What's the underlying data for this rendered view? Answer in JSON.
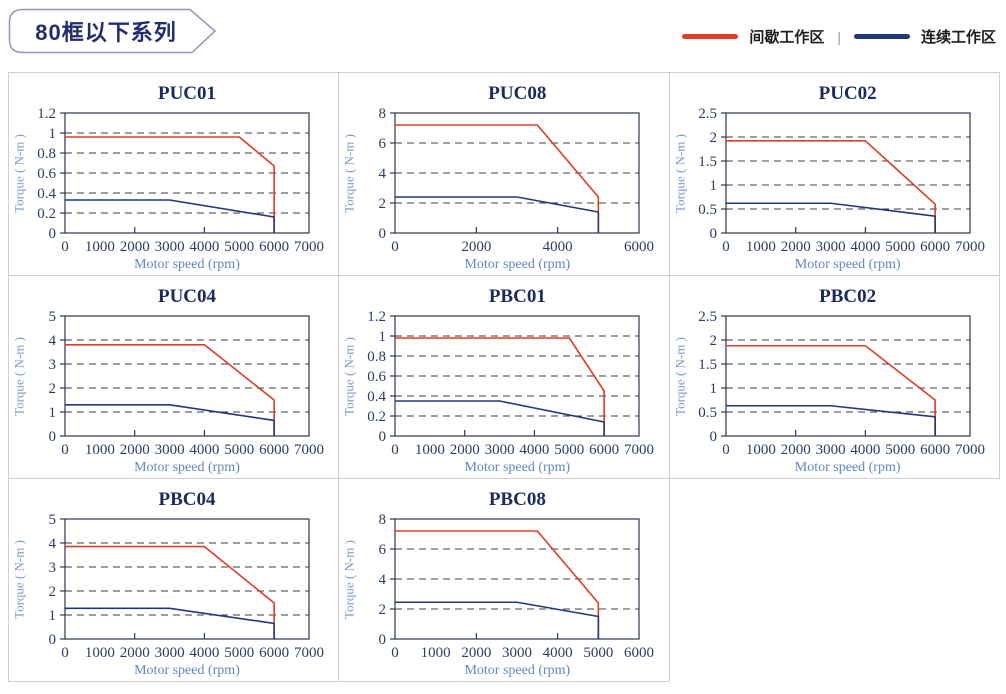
{
  "header": {
    "title": "80框以下系列"
  },
  "legend": {
    "items": [
      {
        "label": "间歇工作区",
        "color": "#dd3e25"
      },
      {
        "label": "连续工作区",
        "color": "#21397a"
      }
    ],
    "separator": "|"
  },
  "colors": {
    "accent_red": "#dd3e25",
    "accent_navy": "#21397a",
    "axis_label_blue": "#5f87c5",
    "tick_text": "#2e3c64",
    "frame": "#2c3550",
    "cell_border": "#ccd0da",
    "title_text": "#1b2a5e"
  },
  "chart_data": [
    {
      "type": "line",
      "title": "PUC01",
      "xlabel": "Motor speed (rpm)",
      "ylabel": "Torque ( N-m )",
      "xlim": [
        0,
        7000
      ],
      "ylim": [
        0,
        1.2
      ],
      "x_tick_labels": [
        0,
        1000,
        2000,
        3000,
        4000,
        5000,
        6000,
        7000
      ],
      "x_tick_marks": [
        2000,
        4000,
        6000
      ],
      "y_ticks": [
        0,
        0.2,
        0.4,
        0.6,
        0.8,
        1,
        1.2
      ],
      "grid": "horizontal-dashed",
      "legend_position": "none",
      "series": [
        {
          "name": "间歇工作区",
          "color": "#dd3e25",
          "points": [
            [
              0,
              0.96
            ],
            [
              5000,
              0.96
            ],
            [
              6000,
              0.67
            ],
            [
              6000,
              0
            ]
          ]
        },
        {
          "name": "连续工作区",
          "color": "#21397a",
          "points": [
            [
              0,
              0.33
            ],
            [
              3000,
              0.33
            ],
            [
              6000,
              0.16
            ],
            [
              6000,
              0
            ]
          ]
        }
      ]
    },
    {
      "type": "line",
      "title": "PUC08",
      "xlabel": "Motor speed (rpm)",
      "ylabel": "Torque ( N-m )",
      "xlim": [
        0,
        6000
      ],
      "ylim": [
        0,
        8
      ],
      "x_tick_labels": [
        0,
        2000,
        4000,
        6000
      ],
      "x_tick_marks": [
        2000,
        4000
      ],
      "y_ticks": [
        0,
        2,
        4,
        6,
        8
      ],
      "grid": "horizontal-dashed",
      "legend_position": "none",
      "series": [
        {
          "name": "间歇工作区",
          "color": "#dd3e25",
          "points": [
            [
              0,
              7.2
            ],
            [
              3500,
              7.2
            ],
            [
              5000,
              2.4
            ],
            [
              5000,
              0
            ]
          ]
        },
        {
          "name": "连续工作区",
          "color": "#21397a",
          "points": [
            [
              0,
              2.4
            ],
            [
              3000,
              2.4
            ],
            [
              5000,
              1.4
            ],
            [
              5000,
              0
            ]
          ]
        }
      ]
    },
    {
      "type": "line",
      "title": "PUC02",
      "xlabel": "Motor speed (rpm)",
      "ylabel": "Torque ( N-m )",
      "xlim": [
        0,
        7000
      ],
      "ylim": [
        0,
        2.5
      ],
      "x_tick_labels": [
        0,
        1000,
        2000,
        3000,
        4000,
        5000,
        6000,
        7000
      ],
      "x_tick_marks": [
        2000,
        4000,
        6000
      ],
      "y_ticks": [
        0,
        0.5,
        1,
        1.5,
        2,
        2.5
      ],
      "grid": "horizontal-dashed",
      "legend_position": "none",
      "series": [
        {
          "name": "间歇工作区",
          "color": "#dd3e25",
          "points": [
            [
              0,
              1.92
            ],
            [
              4000,
              1.92
            ],
            [
              6000,
              0.6
            ],
            [
              6000,
              0
            ]
          ]
        },
        {
          "name": "连续工作区",
          "color": "#21397a",
          "points": [
            [
              0,
              0.62
            ],
            [
              3000,
              0.62
            ],
            [
              6000,
              0.35
            ],
            [
              6000,
              0
            ]
          ]
        }
      ]
    },
    {
      "type": "line",
      "title": "PUC04",
      "xlabel": "Motor speed (rpm)",
      "ylabel": "Torque ( N-m )",
      "xlim": [
        0,
        7000
      ],
      "ylim": [
        0,
        5
      ],
      "x_tick_labels": [
        0,
        1000,
        2000,
        3000,
        4000,
        5000,
        6000,
        7000
      ],
      "x_tick_marks": [
        2000,
        4000,
        6000
      ],
      "y_ticks": [
        0,
        1,
        2,
        3,
        4,
        5
      ],
      "grid": "horizontal-dashed",
      "legend_position": "none",
      "series": [
        {
          "name": "间歇工作区",
          "color": "#dd3e25",
          "points": [
            [
              0,
              3.8
            ],
            [
              4000,
              3.8
            ],
            [
              6000,
              1.5
            ],
            [
              6000,
              0
            ]
          ]
        },
        {
          "name": "连续工作区",
          "color": "#21397a",
          "points": [
            [
              0,
              1.3
            ],
            [
              3000,
              1.3
            ],
            [
              6000,
              0.65
            ],
            [
              6000,
              0
            ]
          ]
        }
      ]
    },
    {
      "type": "line",
      "title": "PBC01",
      "xlabel": "Motor speed (rpm)",
      "ylabel": "Torque ( N-m )",
      "xlim": [
        0,
        7000
      ],
      "ylim": [
        0,
        1.2
      ],
      "x_tick_labels": [
        0,
        1000,
        2000,
        3000,
        4000,
        5000,
        6000,
        7000
      ],
      "x_tick_marks": [
        2000,
        4000,
        6000
      ],
      "y_ticks": [
        0,
        0.2,
        0.4,
        0.6,
        0.8,
        1,
        1.2
      ],
      "grid": "horizontal-dashed",
      "legend_position": "none",
      "series": [
        {
          "name": "间歇工作区",
          "color": "#dd3e25",
          "points": [
            [
              0,
              0.98
            ],
            [
              5000,
              0.98
            ],
            [
              6000,
              0.45
            ],
            [
              6000,
              0
            ]
          ]
        },
        {
          "name": "连续工作区",
          "color": "#21397a",
          "points": [
            [
              0,
              0.35
            ],
            [
              3000,
              0.35
            ],
            [
              6000,
              0.14
            ],
            [
              6000,
              0
            ]
          ]
        }
      ]
    },
    {
      "type": "line",
      "title": "PBC02",
      "xlabel": "Motor speed (rpm)",
      "ylabel": "Torque ( N-m )",
      "xlim": [
        0,
        7000
      ],
      "ylim": [
        0,
        2.5
      ],
      "x_tick_labels": [
        0,
        1000,
        2000,
        3000,
        4000,
        5000,
        6000,
        7000
      ],
      "x_tick_marks": [
        2000,
        4000,
        6000
      ],
      "y_ticks": [
        0,
        0.5,
        1,
        1.5,
        2,
        2.5
      ],
      "grid": "horizontal-dashed",
      "legend_position": "none",
      "series": [
        {
          "name": "间歇工作区",
          "color": "#dd3e25",
          "points": [
            [
              0,
              1.88
            ],
            [
              4000,
              1.88
            ],
            [
              6000,
              0.75
            ],
            [
              6000,
              0
            ]
          ]
        },
        {
          "name": "连续工作区",
          "color": "#21397a",
          "points": [
            [
              0,
              0.63
            ],
            [
              3000,
              0.63
            ],
            [
              6000,
              0.4
            ],
            [
              6000,
              0
            ]
          ]
        }
      ]
    },
    {
      "type": "line",
      "title": "PBC04",
      "xlabel": "Motor speed (rpm)",
      "ylabel": "Torque ( N-m )",
      "xlim": [
        0,
        7000
      ],
      "ylim": [
        0,
        5
      ],
      "x_tick_labels": [
        0,
        1000,
        2000,
        3000,
        4000,
        5000,
        6000,
        7000
      ],
      "x_tick_marks": [
        2000,
        4000,
        6000
      ],
      "y_ticks": [
        0,
        1,
        2,
        3,
        4,
        5
      ],
      "grid": "horizontal-dashed",
      "legend_position": "none",
      "series": [
        {
          "name": "间歇工作区",
          "color": "#dd3e25",
          "points": [
            [
              0,
              3.85
            ],
            [
              4000,
              3.85
            ],
            [
              6000,
              1.5
            ],
            [
              6000,
              0
            ]
          ]
        },
        {
          "name": "连续工作区",
          "color": "#21397a",
          "points": [
            [
              0,
              1.28
            ],
            [
              3000,
              1.28
            ],
            [
              6000,
              0.65
            ],
            [
              6000,
              0
            ]
          ]
        }
      ]
    },
    {
      "type": "line",
      "title": "PBC08",
      "xlabel": "Motor speed (rpm)",
      "ylabel": "Torque ( N-m )",
      "xlim": [
        0,
        6000
      ],
      "ylim": [
        0,
        8
      ],
      "x_tick_labels": [
        0,
        1000,
        2000,
        3000,
        4000,
        5000,
        6000
      ],
      "x_tick_marks": [
        2000,
        4000
      ],
      "y_ticks": [
        0,
        2,
        4,
        6,
        8
      ],
      "grid": "horizontal-dashed",
      "legend_position": "none",
      "series": [
        {
          "name": "间歇工作区",
          "color": "#dd3e25",
          "points": [
            [
              0,
              7.2
            ],
            [
              3500,
              7.2
            ],
            [
              5000,
              2.4
            ],
            [
              5000,
              0
            ]
          ]
        },
        {
          "name": "连续工作区",
          "color": "#21397a",
          "points": [
            [
              0,
              2.45
            ],
            [
              3000,
              2.45
            ],
            [
              5000,
              1.5
            ],
            [
              5000,
              0
            ]
          ]
        }
      ]
    }
  ]
}
